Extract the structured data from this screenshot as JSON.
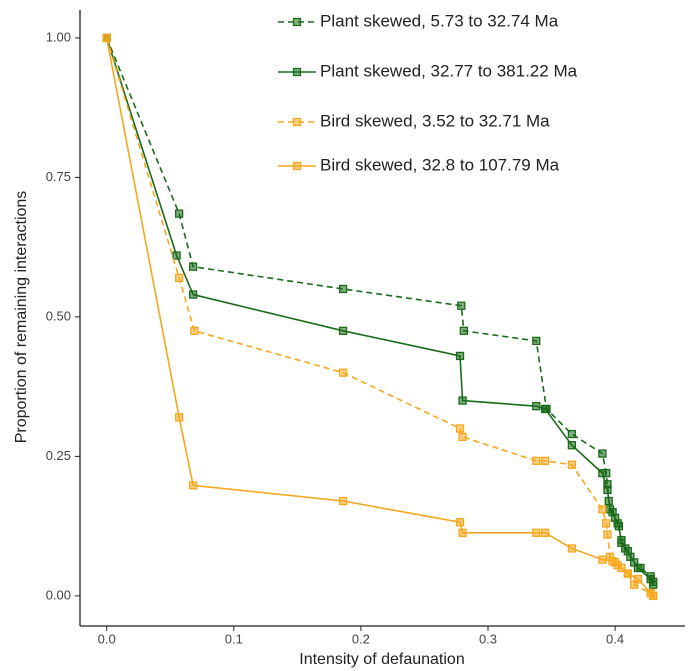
{
  "chart_data": {
    "type": "line",
    "x_label": "Intensity of defaunation",
    "y_label": "Proportion of remaining interactions",
    "xlim": [
      -0.021,
      0.455
    ],
    "ylim": [
      -0.054,
      1.05
    ],
    "xticks": [
      {
        "value": 0,
        "label": "0.0"
      },
      0.1,
      0.2,
      0.3,
      0.4
    ],
    "yticks": [
      {
        "value": 0,
        "label": "0.00"
      },
      0.25,
      {
        "value": 0.5,
        "label": "0.50"
      },
      0.75,
      {
        "value": 1,
        "label": "1.00"
      }
    ],
    "legend": "upper right",
    "series": [
      {
        "name": "Plant skewed, 5.73 to 32.74 Ma",
        "color": "#1a6b1a",
        "dashed": true,
        "x": [
          0,
          0.057,
          0.068,
          0.186,
          0.279,
          0.281,
          0.338,
          0.346,
          0.366,
          0.39,
          0.393,
          0.394,
          0.395,
          0.398,
          0.402,
          0.405,
          0.41,
          0.415,
          0.42,
          0.428,
          0.43
        ],
        "values": [
          1,
          0.685,
          0.59,
          0.55,
          0.52,
          0.475,
          0.457,
          0.335,
          0.29,
          0.255,
          0.22,
          0.2,
          0.17,
          0.15,
          0.13,
          0.1,
          0.08,
          0.06,
          0.05,
          0.035,
          0.025
        ]
      },
      {
        "name": "Plant skewed, 32.77 to 381.22 Ma",
        "color": "#1a6b1a",
        "dashed": false,
        "x": [
          0,
          0.055,
          0.068,
          0.186,
          0.278,
          0.28,
          0.338,
          0.345,
          0.366,
          0.39,
          0.394,
          0.396,
          0.4,
          0.403,
          0.405,
          0.408,
          0.412,
          0.418,
          0.428,
          0.43
        ],
        "values": [
          1,
          0.61,
          0.54,
          0.475,
          0.43,
          0.35,
          0.34,
          0.335,
          0.27,
          0.22,
          0.19,
          0.155,
          0.14,
          0.125,
          0.095,
          0.085,
          0.07,
          0.05,
          0.03,
          0.02
        ]
      },
      {
        "name": "Bird skewed, 3.52 to 32.71 Ma",
        "color": "#f5a81e",
        "dashed": true,
        "x": [
          0,
          0.057,
          0.069,
          0.186,
          0.278,
          0.28,
          0.338,
          0.345,
          0.366,
          0.39,
          0.393,
          0.394,
          0.396,
          0.4,
          0.405,
          0.41,
          0.415,
          0.428,
          0.43
        ],
        "values": [
          1,
          0.57,
          0.475,
          0.4,
          0.3,
          0.285,
          0.242,
          0.242,
          0.235,
          0.155,
          0.13,
          0.11,
          0.07,
          0.06,
          0.05,
          0.04,
          0.02,
          0.005,
          0
        ]
      },
      {
        "name": "Bird skewed, 32.8 to 107.79 Ma",
        "color": "#f5a81e",
        "dashed": false,
        "x": [
          0,
          0.057,
          0.068,
          0.186,
          0.278,
          0.28,
          0.338,
          0.345,
          0.366,
          0.39,
          0.398,
          0.402,
          0.41,
          0.418,
          0.428,
          0.43
        ],
        "values": [
          1,
          0.32,
          0.198,
          0.17,
          0.132,
          0.113,
          0.113,
          0.113,
          0.085,
          0.065,
          0.062,
          0.055,
          0.04,
          0.03,
          0.005,
          0
        ]
      }
    ]
  }
}
